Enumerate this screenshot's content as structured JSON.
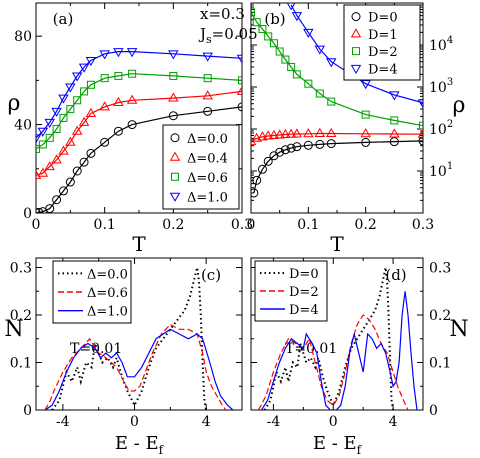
{
  "chart_data": [
    {
      "id": "a",
      "type": "line",
      "panel_label": "(a)",
      "xlabel": "T",
      "ylabel": "ρ",
      "xlim": [
        0,
        0.3
      ],
      "ylim": [
        0,
        95
      ],
      "x_ticks": [
        0,
        0.1,
        0.2,
        0.3
      ],
      "x_tick_labels": [
        "0",
        "0.1",
        "0.2",
        "0.3"
      ],
      "y_ticks": [
        0,
        40,
        80
      ],
      "y_tick_labels": [
        "0",
        "40",
        "80"
      ],
      "y_scale": "linear",
      "grid": false,
      "annotations": [
        "x=0.3",
        "J",
        "s",
        "=0.05"
      ],
      "legend": {
        "position": "bottom-right",
        "entries": [
          "Δ=0.0",
          "Δ=0.4",
          "Δ=0.6",
          "Δ=1.0"
        ]
      },
      "series": [
        {
          "name": "Δ=0.0",
          "color": "#000000",
          "marker": "circle",
          "x": [
            0,
            0.004,
            0.01,
            0.02,
            0.03,
            0.04,
            0.05,
            0.06,
            0.07,
            0.08,
            0.1,
            0.12,
            0.14,
            0.2,
            0.25,
            0.3
          ],
          "y": [
            0,
            0.3,
            0.6,
            2,
            6,
            10,
            14,
            19,
            23,
            27,
            32,
            37,
            40,
            44,
            46,
            48
          ]
        },
        {
          "name": "Δ=0.4",
          "color": "#ff0000",
          "marker": "triangle-up",
          "x": [
            0,
            0.01,
            0.02,
            0.03,
            0.04,
            0.05,
            0.06,
            0.07,
            0.08,
            0.1,
            0.12,
            0.14,
            0.2,
            0.25,
            0.3
          ],
          "y": [
            17,
            18,
            21,
            24,
            28,
            32,
            37,
            41,
            45,
            48,
            50,
            51,
            52,
            53,
            55
          ]
        },
        {
          "name": "Δ=0.6",
          "color": "#00a000",
          "marker": "square",
          "x": [
            0,
            0.01,
            0.02,
            0.03,
            0.04,
            0.05,
            0.06,
            0.07,
            0.08,
            0.1,
            0.12,
            0.14,
            0.2,
            0.25,
            0.3
          ],
          "y": [
            29,
            31,
            34,
            38,
            43,
            47,
            51,
            55,
            58,
            61,
            62,
            63,
            62,
            61,
            60
          ]
        },
        {
          "name": "Δ=1.0",
          "color": "#0000ff",
          "marker": "triangle-down",
          "x": [
            0,
            0.01,
            0.02,
            0.03,
            0.04,
            0.05,
            0.06,
            0.07,
            0.08,
            0.1,
            0.12,
            0.14,
            0.2,
            0.25,
            0.3
          ],
          "y": [
            34,
            37,
            41,
            46,
            52,
            57,
            62,
            66,
            69,
            72,
            73,
            73,
            72,
            71,
            70
          ]
        }
      ]
    },
    {
      "id": "b",
      "type": "line",
      "panel_label": "(b)",
      "xlabel": "T",
      "ylabel": "ρ",
      "xlim": [
        0,
        0.3
      ],
      "ylim": [
        1,
        100000
      ],
      "x_ticks": [
        0,
        0.1,
        0.2,
        0.3
      ],
      "x_tick_labels": [
        "0",
        "0.1",
        "0.2",
        "0.3"
      ],
      "y_scale": "log",
      "y_ticks": [
        10,
        100,
        1000,
        10000
      ],
      "y_tick_labels": [
        [
          "10",
          "1"
        ],
        [
          "10",
          "2"
        ],
        [
          "10",
          "3"
        ],
        [
          "10",
          "4"
        ]
      ],
      "grid": false,
      "legend": {
        "position": "top-right",
        "entries": [
          "D=0",
          "D=1",
          "D=2",
          "D=4"
        ]
      },
      "series": [
        {
          "name": "D=0",
          "color": "#000000",
          "marker": "circle",
          "x": [
            0.005,
            0.01,
            0.02,
            0.03,
            0.04,
            0.05,
            0.06,
            0.07,
            0.08,
            0.1,
            0.12,
            0.14,
            0.2,
            0.25,
            0.3
          ],
          "y": [
            3,
            6,
            11,
            17,
            23,
            28,
            32,
            35,
            38,
            41,
            43,
            45,
            48,
            50,
            52
          ]
        },
        {
          "name": "D=1",
          "color": "#ff0000",
          "marker": "triangle-up",
          "x": [
            0,
            0.01,
            0.02,
            0.03,
            0.04,
            0.05,
            0.06,
            0.07,
            0.08,
            0.1,
            0.12,
            0.14,
            0.2,
            0.25,
            0.3
          ],
          "y": [
            50,
            60,
            65,
            68,
            70,
            72,
            74,
            75,
            76,
            77,
            78,
            78,
            77,
            76,
            75
          ]
        },
        {
          "name": "D=2",
          "color": "#00a000",
          "marker": "square",
          "x": [
            0,
            0.01,
            0.02,
            0.03,
            0.04,
            0.05,
            0.06,
            0.07,
            0.08,
            0.1,
            0.12,
            0.14,
            0.2,
            0.25,
            0.3
          ],
          "y": [
            60000,
            35000,
            24000,
            16000,
            11000,
            7000,
            4500,
            3000,
            2000,
            1200,
            700,
            450,
            220,
            160,
            120
          ]
        },
        {
          "name": "D=4",
          "color": "#0000ff",
          "marker": "triangle-down",
          "x": [
            0.07,
            0.08,
            0.1,
            0.12,
            0.14,
            0.2,
            0.25,
            0.3
          ],
          "y": [
            90000,
            50000,
            20000,
            8000,
            4000,
            1200,
            650,
            420
          ]
        }
      ]
    },
    {
      "id": "c",
      "type": "line",
      "panel_label": "(c)",
      "xlabel": "E - E",
      "xlabel_sub": "f",
      "ylabel": "N",
      "xlim": [
        -5.5,
        6
      ],
      "ylim": [
        0,
        0.32
      ],
      "x_ticks": [
        -4,
        0,
        4
      ],
      "x_tick_labels": [
        "-4",
        "0",
        "4"
      ],
      "y_ticks": [
        0,
        0.1,
        0.2,
        0.3
      ],
      "y_tick_labels": [
        "0",
        "0.1",
        "0.2",
        "0.3"
      ],
      "y_scale": "linear",
      "grid": false,
      "annotations": [
        "T=0.01"
      ],
      "legend": {
        "position": "top-left",
        "entries": [
          "Δ=0.0",
          "Δ=0.6",
          "Δ=1.0"
        ]
      },
      "series": [
        {
          "name": "Δ=0.0",
          "color": "#000000",
          "style": "dotted",
          "x": [
            -4.6,
            -4.2,
            -4.0,
            -3.8,
            -3.5,
            -3.2,
            -3.0,
            -2.7,
            -2.4,
            -2.2,
            -2.0,
            -1.8,
            -1.5,
            -1.2,
            -1.0,
            -0.7,
            -0.4,
            0,
            0.4,
            0.8,
            1.2,
            1.6,
            2.0,
            2.4,
            2.8,
            3.1,
            3.3,
            3.5,
            3.6,
            3.7,
            3.8,
            3.9,
            4.0
          ],
          "y": [
            0,
            0.02,
            0.05,
            0.08,
            0.06,
            0.09,
            0.06,
            0.1,
            0.09,
            0.14,
            0.12,
            0.1,
            0.11,
            0.09,
            0.11,
            0.07,
            0.04,
            0.01,
            0.04,
            0.09,
            0.13,
            0.15,
            0.17,
            0.19,
            0.21,
            0.24,
            0.27,
            0.3,
            0.27,
            0.2,
            0.1,
            0.02,
            0
          ]
        },
        {
          "name": "Δ=0.6",
          "color": "#ff0000",
          "style": "dashed",
          "x": [
            -5.0,
            -4.7,
            -4.5,
            -4.0,
            -3.5,
            -3.0,
            -2.5,
            -2.0,
            -1.6,
            -1.3,
            -1.0,
            -0.6,
            -0.3,
            0,
            0.3,
            0.6,
            1.0,
            1.5,
            2.0,
            2.5,
            3.0,
            3.5,
            3.8,
            4.0,
            4.3,
            4.6,
            4.9,
            5.1
          ],
          "y": [
            0,
            0.02,
            0.04,
            0.08,
            0.11,
            0.13,
            0.15,
            0.12,
            0.11,
            0.1,
            0.09,
            0.06,
            0.04,
            0.04,
            0.05,
            0.08,
            0.12,
            0.16,
            0.18,
            0.17,
            0.17,
            0.16,
            0.12,
            0.08,
            0.05,
            0.03,
            0.01,
            0
          ]
        },
        {
          "name": "Δ=1.0",
          "color": "#0000ff",
          "style": "solid",
          "x": [
            -5.0,
            -4.6,
            -4.2,
            -3.8,
            -3.4,
            -3.0,
            -2.6,
            -2.2,
            -1.9,
            -1.6,
            -1.3,
            -1.0,
            -0.7,
            -0.4,
            0,
            0.4,
            0.8,
            1.2,
            1.6,
            2.0,
            2.5,
            3.0,
            3.5,
            3.8,
            4.2,
            4.5,
            4.8,
            5.2,
            5.5
          ],
          "y": [
            0,
            0.01,
            0.04,
            0.08,
            0.11,
            0.13,
            0.14,
            0.13,
            0.11,
            0.12,
            0.11,
            0.12,
            0.1,
            0.07,
            0.07,
            0.09,
            0.12,
            0.15,
            0.16,
            0.17,
            0.16,
            0.15,
            0.16,
            0.15,
            0.1,
            0.06,
            0.03,
            0.01,
            0
          ]
        }
      ]
    },
    {
      "id": "d",
      "type": "line",
      "panel_label": "(d)",
      "xlabel": "E - E",
      "xlabel_sub": "f",
      "ylabel": "N",
      "xlim": [
        -5.5,
        6
      ],
      "ylim": [
        0,
        0.32
      ],
      "x_ticks": [
        -4,
        0,
        4
      ],
      "x_tick_labels": [
        "-4",
        "0",
        "4"
      ],
      "y_ticks": [
        0,
        0.1,
        0.2,
        0.3
      ],
      "y_tick_labels": [
        "0",
        "0.1",
        "0.2",
        "0.3"
      ],
      "y_scale": "linear",
      "grid": false,
      "annotations": [
        "T=0.01"
      ],
      "legend": {
        "position": "top-left",
        "entries": [
          "D=0",
          "D=2",
          "D=4"
        ]
      },
      "series": [
        {
          "name": "D=0",
          "color": "#000000",
          "style": "dotted",
          "x": [
            -4.6,
            -4.2,
            -4.0,
            -3.8,
            -3.5,
            -3.2,
            -3.0,
            -2.7,
            -2.4,
            -2.2,
            -2.0,
            -1.8,
            -1.5,
            -1.2,
            -1.0,
            -0.7,
            -0.4,
            0,
            0.4,
            0.8,
            1.2,
            1.6,
            2.0,
            2.4,
            2.8,
            3.1,
            3.3,
            3.5,
            3.6,
            3.7,
            3.8,
            3.9,
            4.0
          ],
          "y": [
            0,
            0.02,
            0.05,
            0.08,
            0.06,
            0.09,
            0.06,
            0.1,
            0.09,
            0.14,
            0.12,
            0.1,
            0.11,
            0.09,
            0.11,
            0.07,
            0.04,
            0.01,
            0.04,
            0.09,
            0.13,
            0.15,
            0.17,
            0.19,
            0.21,
            0.24,
            0.27,
            0.3,
            0.27,
            0.2,
            0.1,
            0.02,
            0
          ]
        },
        {
          "name": "D=2",
          "color": "#ff0000",
          "style": "dashed",
          "x": [
            -5.0,
            -4.5,
            -4.0,
            -3.5,
            -3.0,
            -2.5,
            -2.0,
            -1.6,
            -1.2,
            -0.8,
            -0.4,
            0,
            0.4,
            0.8,
            1.2,
            1.6,
            2.0,
            2.4,
            2.8,
            3.2,
            3.6,
            4.0,
            4.3,
            4.7,
            5.0
          ],
          "y": [
            0,
            0.03,
            0.08,
            0.12,
            0.15,
            0.14,
            0.13,
            0.15,
            0.1,
            0.05,
            0.02,
            0.01,
            0.03,
            0.08,
            0.14,
            0.18,
            0.2,
            0.19,
            0.17,
            0.14,
            0.12,
            0.08,
            0.05,
            0.02,
            0
          ]
        },
        {
          "name": "D=4",
          "color": "#0000ff",
          "style": "solid",
          "x": [
            -4.8,
            -4.4,
            -4.0,
            -3.6,
            -3.2,
            -2.8,
            -2.4,
            -2.0,
            -1.8,
            -1.6,
            -1.4,
            -1.1,
            -0.8,
            -0.5,
            -0.2,
            0.2,
            0.5,
            0.8,
            1.1,
            1.4,
            1.7,
            2.0,
            2.3,
            2.6,
            2.9,
            3.2,
            3.5,
            3.8,
            4.0,
            4.2,
            4.4,
            4.6,
            4.8,
            5.0,
            5.2,
            5.4,
            5.6
          ],
          "y": [
            0,
            0.02,
            0.06,
            0.1,
            0.13,
            0.15,
            0.14,
            0.13,
            0.16,
            0.15,
            0.14,
            0.12,
            0.06,
            0.01,
            0,
            0,
            0.01,
            0.05,
            0.12,
            0.16,
            0.12,
            0.08,
            0.16,
            0.15,
            0.13,
            0.14,
            0.12,
            0.08,
            0.05,
            0.06,
            0.1,
            0.2,
            0.25,
            0.2,
            0.12,
            0.05,
            0
          ]
        }
      ]
    }
  ]
}
